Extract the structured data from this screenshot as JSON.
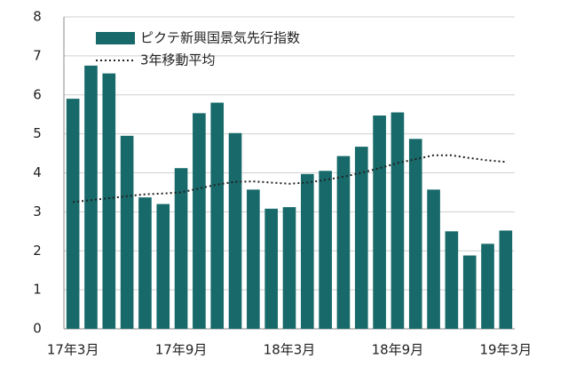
{
  "chart_data": {
    "type": "bar",
    "categories": [
      "17年3月",
      null,
      null,
      null,
      null,
      null,
      "17年9月",
      null,
      null,
      null,
      null,
      null,
      "18年3月",
      null,
      null,
      null,
      null,
      null,
      "18年9月",
      null,
      null,
      null,
      null,
      null,
      "19年3月"
    ],
    "series": [
      {
        "name": "ピクテ新興国景気先行指数",
        "type": "bar",
        "color": "#17696a",
        "values": [
          5.9,
          6.75,
          6.55,
          4.95,
          3.37,
          3.2,
          4.12,
          5.53,
          5.8,
          5.02,
          3.57,
          3.08,
          3.12,
          3.97,
          4.05,
          4.43,
          4.67,
          5.47,
          5.55,
          4.87,
          3.57,
          2.5,
          1.88,
          2.18,
          2.52
        ]
      },
      {
        "name": "3年移動平均",
        "type": "line",
        "color": "#222222",
        "dashed": true,
        "values": [
          3.25,
          3.3,
          3.35,
          3.4,
          3.45,
          3.47,
          3.5,
          3.6,
          3.7,
          3.77,
          3.78,
          3.75,
          3.72,
          3.75,
          3.82,
          3.9,
          4.0,
          4.12,
          4.25,
          4.35,
          4.45,
          4.45,
          4.38,
          4.32,
          4.28
        ]
      }
    ],
    "ylim": [
      0,
      8
    ],
    "yticks": [
      0,
      1,
      2,
      3,
      4,
      5,
      6,
      7,
      8
    ],
    "grid": true,
    "legend": "upper left"
  }
}
